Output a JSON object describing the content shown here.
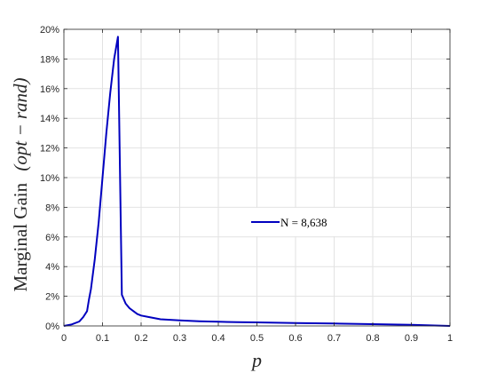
{
  "chart_data": {
    "type": "line",
    "xlabel": "p",
    "ylabel": "Marginal Gain (opt − rand)",
    "ylabel_plain": "Marginal Gain",
    "ylabel_math": "(opt − rand)",
    "xlim": [
      0,
      1
    ],
    "ylim": [
      0,
      20
    ],
    "y_unit": "%",
    "grid": true,
    "legend_position": "center-right",
    "x_ticks": [
      "0",
      "0.1",
      "0.2",
      "0.3",
      "0.4",
      "0.5",
      "0.6",
      "0.7",
      "0.8",
      "0.9",
      "1"
    ],
    "y_ticks": [
      "0%",
      "2%",
      "4%",
      "6%",
      "8%",
      "10%",
      "12%",
      "14%",
      "16%",
      "18%",
      "20%"
    ],
    "series": [
      {
        "name": "N =  8,638",
        "color": "#0000bf",
        "x": [
          0,
          0.02,
          0.04,
          0.05,
          0.06,
          0.065,
          0.07,
          0.08,
          0.09,
          0.1,
          0.11,
          0.12,
          0.13,
          0.14,
          0.15,
          0.16,
          0.17,
          0.18,
          0.19,
          0.2,
          0.22,
          0.25,
          0.3,
          0.35,
          0.4,
          0.45,
          0.5,
          0.6,
          0.7,
          0.8,
          0.9,
          1.0
        ],
        "y": [
          0,
          0.1,
          0.3,
          0.6,
          1.0,
          1.8,
          2.5,
          4.5,
          7.0,
          10.0,
          13.0,
          15.7,
          18.0,
          19.5,
          2.1,
          1.5,
          1.2,
          1.0,
          0.8,
          0.7,
          0.6,
          0.45,
          0.38,
          0.32,
          0.28,
          0.26,
          0.24,
          0.2,
          0.16,
          0.12,
          0.07,
          0.0
        ]
      }
    ]
  }
}
